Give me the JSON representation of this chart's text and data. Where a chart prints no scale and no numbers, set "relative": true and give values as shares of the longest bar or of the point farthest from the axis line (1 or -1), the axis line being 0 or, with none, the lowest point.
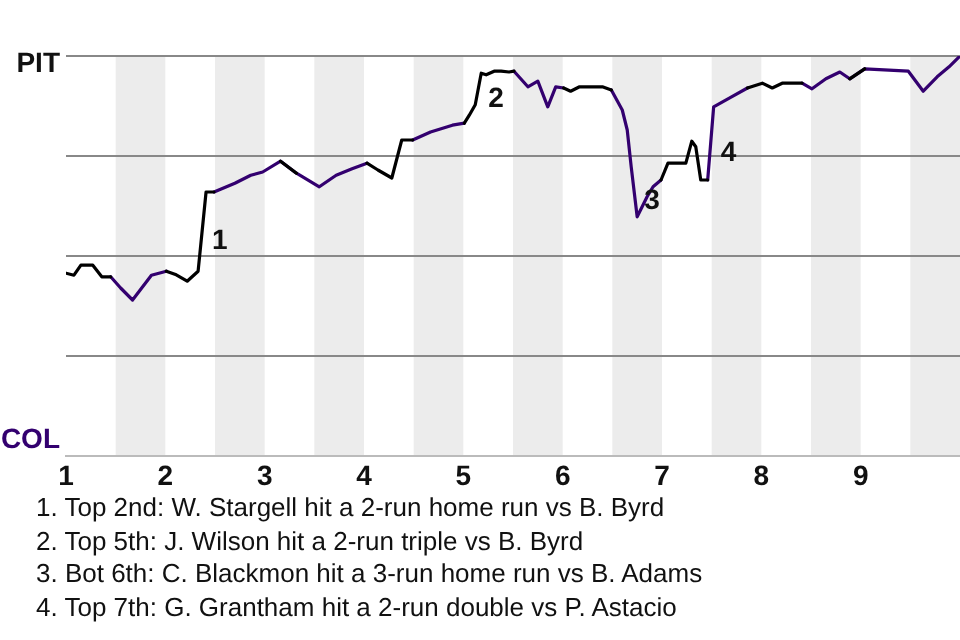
{
  "chart_data": {
    "type": "line",
    "relative": true,
    "x": [
      1,
      1.08,
      1.15,
      1.27,
      1.36,
      1.45,
      1.55,
      1.67,
      1.86,
      2.01,
      2.11,
      2.22,
      2.33,
      2.41,
      2.49,
      2.7,
      2.86,
      2.98,
      3.16,
      3.32,
      3.55,
      3.72,
      3.88,
      4.03,
      4.14,
      4.28,
      4.38,
      4.49,
      4.67,
      4.89,
      5.01,
      5.06,
      5.12,
      5.18,
      5.23,
      5.31,
      5.38,
      5.46,
      5.51,
      5.65,
      5.75,
      5.85,
      5.93,
      6.01,
      6.08,
      6.17,
      6.27,
      6.4,
      6.49,
      6.6,
      6.65,
      6.69,
      6.75,
      6.85,
      6.91,
      6.99,
      7.06,
      7.15,
      7.24,
      7.3,
      7.34,
      7.39,
      7.46,
      7.52,
      7.7,
      7.86,
      8.01,
      8.11,
      8.21,
      8.41,
      8.51,
      8.65,
      8.79,
      8.89,
      9.04,
      9.48,
      9.63,
      9.77,
      9.89,
      10
    ],
    "series": [
      {
        "color": "#000000",
        "values": [
          0.457,
          0.452,
          0.477,
          0.477,
          0.448,
          0.448,
          null,
          null,
          null,
          0.462,
          0.453,
          0.437,
          0.462,
          0.66,
          0.66,
          null,
          null,
          null,
          0.737,
          0.707,
          null,
          null,
          null,
          0.732,
          0.715,
          0.695,
          0.79,
          0.79,
          null,
          null,
          0.832,
          0.852,
          0.878,
          0.957,
          0.953,
          0.962,
          0.962,
          0.96,
          0.962,
          null,
          null,
          null,
          null,
          0.92,
          0.912,
          0.923,
          0.923,
          0.923,
          0.915,
          null,
          null,
          null,
          null,
          null,
          null,
          0.69,
          0.732,
          0.732,
          0.732,
          0.787,
          0.773,
          0.69,
          0.69,
          null,
          null,
          0.92,
          0.932,
          0.92,
          0.932,
          0.932,
          null,
          null,
          null,
          0.943,
          0.968,
          null,
          null,
          null,
          null,
          null
        ]
      },
      {
        "color": "#33006f",
        "values": [
          null,
          null,
          null,
          null,
          null,
          0.448,
          0.42,
          0.39,
          0.452,
          0.462,
          null,
          null,
          null,
          null,
          0.66,
          0.682,
          0.702,
          0.71,
          0.737,
          0.707,
          0.673,
          0.702,
          0.718,
          0.732,
          null,
          null,
          null,
          0.79,
          0.81,
          0.827,
          0.832,
          null,
          null,
          null,
          null,
          null,
          null,
          null,
          0.962,
          0.923,
          0.937,
          0.873,
          0.923,
          0.92,
          null,
          null,
          null,
          null,
          0.915,
          0.865,
          0.815,
          0.723,
          0.598,
          0.648,
          0.673,
          0.69,
          null,
          null,
          null,
          null,
          null,
          null,
          0.69,
          0.873,
          0.898,
          0.92,
          null,
          null,
          null,
          0.932,
          0.918,
          0.943,
          0.96,
          0.943,
          0.968,
          0.962,
          0.912,
          0.948,
          0.973,
          1
        ]
      }
    ],
    "xlim": [
      1,
      10
    ],
    "xticks": [
      1,
      2,
      3,
      4,
      5,
      6,
      7,
      8,
      9
    ],
    "grid": "y",
    "bands": [
      {
        "axis": "x",
        "from": 1.5,
        "to": 2,
        "color": "#ececec"
      },
      {
        "axis": "x",
        "from": 2.5,
        "to": 3,
        "color": "#ececec"
      },
      {
        "axis": "x",
        "from": 3.5,
        "to": 4,
        "color": "#ececec"
      },
      {
        "axis": "x",
        "from": 4.5,
        "to": 5,
        "color": "#ececec"
      },
      {
        "axis": "x",
        "from": 5.5,
        "to": 6,
        "color": "#ececec"
      },
      {
        "axis": "x",
        "from": 6.5,
        "to": 7,
        "color": "#ececec"
      },
      {
        "axis": "x",
        "from": 7.5,
        "to": 8,
        "color": "#ececec"
      },
      {
        "axis": "x",
        "from": 8.5,
        "to": 9,
        "color": "#ececec"
      },
      {
        "axis": "x",
        "from": 9.5,
        "to": 10,
        "color": "#ececec"
      }
    ],
    "annotations": [
      "PIT",
      "COL",
      {
        "text": "1",
        "x": 2.37,
        "y": 0.561
      },
      {
        "text": "2",
        "x": 5.15,
        "y": 0.918
      },
      {
        "text": "3",
        "x": 6.72,
        "y": 0.661
      },
      {
        "text": "4",
        "x": 7.49,
        "y": 0.782
      },
      "1. Top 2nd: W. Stargell hit a 2-run home run vs B. Byrd",
      "2. Top 5th: J. Wilson hit a 2-run triple vs B. Byrd",
      "3. Bot 6th: C. Blackmon hit a 3-run home run vs B. Adams",
      "4. Top 7th: G. Grantham hit a 2-run double vs P. Astacio"
    ]
  }
}
